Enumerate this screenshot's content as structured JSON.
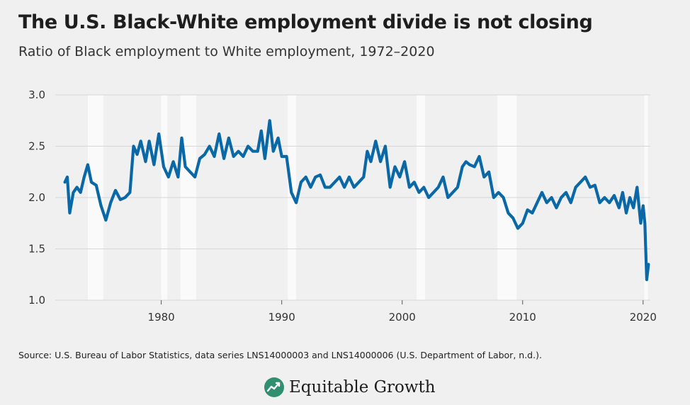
{
  "title": "The U.S. Black-White employment divide is not closing",
  "subtitle": "Ratio of Black employment to White employment, 1972–2020",
  "source": "Source: U.S. Bureau of Labor Statistics, data series LNS14000003 and LNS14000006 (U.S. Department of Labor, n.d.).",
  "brand": {
    "name": "Equitable Growth",
    "logo_icon": "equitable-growth-leaf-icon"
  },
  "colors": {
    "line": "#0b68a6",
    "background": "#f0f0f0",
    "grid": "#d6d6d6",
    "recession_band": "#fafafa"
  },
  "chart_data": {
    "type": "line",
    "title": "The U.S. Black-White employment divide is not closing",
    "subtitle": "Ratio of Black employment to White employment, 1972–2020",
    "xlabel": "",
    "ylabel": "",
    "xlim": [
      1971.2,
      2020.6
    ],
    "ylim": [
      1.0,
      3.0
    ],
    "xticks": [
      1980,
      1990,
      2000,
      2010,
      2020
    ],
    "yticks": [
      1.0,
      1.5,
      2.0,
      2.5,
      3.0
    ],
    "ytick_labels": [
      "1.0",
      "1.5",
      "2.0",
      "2.5",
      "3.0"
    ],
    "grid": "horizontal",
    "recession_periods": [
      [
        1973.9,
        1975.2
      ],
      [
        1980.0,
        1980.5
      ],
      [
        1981.6,
        1982.9
      ],
      [
        1990.5,
        1991.2
      ],
      [
        2001.2,
        2001.9
      ],
      [
        2007.9,
        2009.5
      ],
      [
        2020.1,
        2020.4
      ]
    ],
    "series": [
      {
        "x": [
          1972.0,
          1972.2,
          1972.4,
          1972.7,
          1973.0,
          1973.3,
          1973.6,
          1973.9,
          1974.2,
          1974.6,
          1975.0,
          1975.4,
          1975.8,
          1976.2,
          1976.6,
          1977.0,
          1977.4,
          1977.7,
          1978.0,
          1978.3,
          1978.7,
          1979.0,
          1979.4,
          1979.8,
          1980.2,
          1980.6,
          1981.0,
          1981.4,
          1981.7,
          1982.0,
          1982.4,
          1982.8,
          1983.2,
          1983.6,
          1984.0,
          1984.4,
          1984.8,
          1985.2,
          1985.6,
          1986.0,
          1986.4,
          1986.8,
          1987.2,
          1987.6,
          1988.0,
          1988.3,
          1988.6,
          1989.0,
          1989.3,
          1989.7,
          1990.0,
          1990.4,
          1990.8,
          1991.2,
          1991.6,
          1992.0,
          1992.4,
          1992.8,
          1993.2,
          1993.6,
          1994.0,
          1994.4,
          1994.8,
          1995.2,
          1995.6,
          1996.0,
          1996.4,
          1996.8,
          1997.1,
          1997.4,
          1997.8,
          1998.2,
          1998.6,
          1999.0,
          1999.4,
          1999.8,
          2000.2,
          2000.6,
          2001.0,
          2001.4,
          2001.8,
          2002.2,
          2002.6,
          2003.0,
          2003.4,
          2003.8,
          2004.2,
          2004.6,
          2005.0,
          2005.3,
          2005.6,
          2006.0,
          2006.4,
          2006.8,
          2007.2,
          2007.6,
          2008.0,
          2008.4,
          2008.8,
          2009.2,
          2009.6,
          2010.0,
          2010.4,
          2010.8,
          2011.2,
          2011.6,
          2012.0,
          2012.4,
          2012.8,
          2013.2,
          2013.6,
          2014.0,
          2014.4,
          2014.8,
          2015.2,
          2015.6,
          2016.0,
          2016.4,
          2016.8,
          2017.2,
          2017.6,
          2018.0,
          2018.3,
          2018.6,
          2018.9,
          2019.2,
          2019.5,
          2019.8,
          2020.0,
          2020.15,
          2020.3,
          2020.45
        ],
        "values": [
          2.15,
          2.2,
          1.85,
          2.05,
          2.1,
          2.05,
          2.2,
          2.32,
          2.15,
          2.12,
          1.92,
          1.78,
          1.95,
          2.07,
          1.98,
          2.0,
          2.05,
          2.5,
          2.42,
          2.55,
          2.35,
          2.55,
          2.32,
          2.62,
          2.3,
          2.2,
          2.35,
          2.2,
          2.58,
          2.3,
          2.25,
          2.2,
          2.38,
          2.42,
          2.5,
          2.4,
          2.62,
          2.38,
          2.58,
          2.4,
          2.45,
          2.4,
          2.5,
          2.45,
          2.45,
          2.65,
          2.38,
          2.75,
          2.45,
          2.58,
          2.4,
          2.4,
          2.05,
          1.95,
          2.15,
          2.2,
          2.1,
          2.2,
          2.22,
          2.1,
          2.1,
          2.15,
          2.2,
          2.1,
          2.2,
          2.1,
          2.15,
          2.2,
          2.45,
          2.35,
          2.55,
          2.35,
          2.5,
          2.1,
          2.3,
          2.2,
          2.35,
          2.1,
          2.15,
          2.05,
          2.1,
          2.0,
          2.05,
          2.1,
          2.2,
          2.0,
          2.05,
          2.1,
          2.3,
          2.35,
          2.32,
          2.3,
          2.4,
          2.2,
          2.25,
          2.0,
          2.05,
          2.0,
          1.85,
          1.8,
          1.7,
          1.75,
          1.88,
          1.85,
          1.95,
          2.05,
          1.95,
          2.0,
          1.9,
          2.0,
          2.05,
          1.95,
          2.1,
          2.15,
          2.2,
          2.1,
          2.12,
          1.95,
          2.0,
          1.95,
          2.02,
          1.9,
          2.05,
          1.85,
          2.0,
          1.9,
          2.1,
          1.75,
          1.92,
          1.75,
          1.2,
          1.35
        ]
      }
    ]
  }
}
